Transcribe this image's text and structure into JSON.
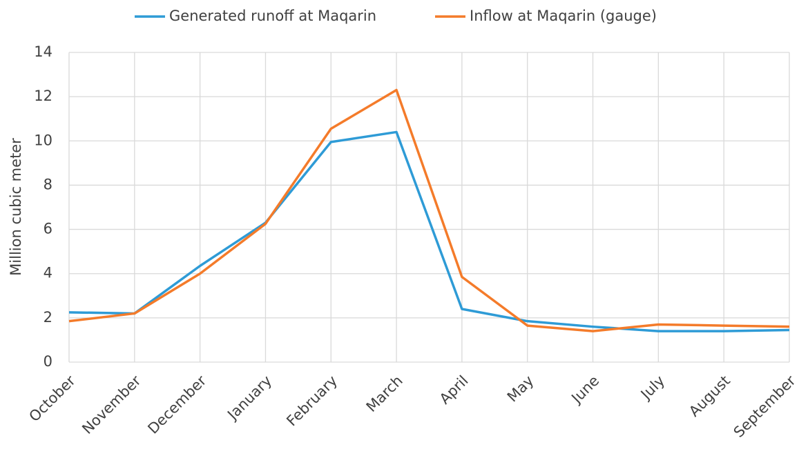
{
  "chart_data": {
    "type": "line",
    "y_label": "Million cubic meter",
    "categories": [
      "October",
      "November",
      "December",
      "January",
      "February",
      "March",
      "April",
      "May",
      "June",
      "July",
      "August",
      "September"
    ],
    "series": [
      {
        "name": "Generated runoff at Maqarin",
        "color": "#2e9bd6",
        "values": [
          2.25,
          2.2,
          4.35,
          6.3,
          9.95,
          10.4,
          2.4,
          1.85,
          1.6,
          1.4,
          1.4,
          1.45
        ]
      },
      {
        "name": "Inflow at Maqarin (gauge)",
        "color": "#f47b2a",
        "values": [
          1.85,
          2.2,
          4.0,
          6.25,
          10.55,
          12.3,
          3.85,
          1.65,
          1.4,
          1.7,
          1.65,
          1.6
        ]
      }
    ],
    "ylim": [
      0,
      14
    ],
    "yticks": [
      0,
      2,
      4,
      6,
      8,
      10,
      12,
      14
    ],
    "grid": true,
    "legend": "top"
  }
}
